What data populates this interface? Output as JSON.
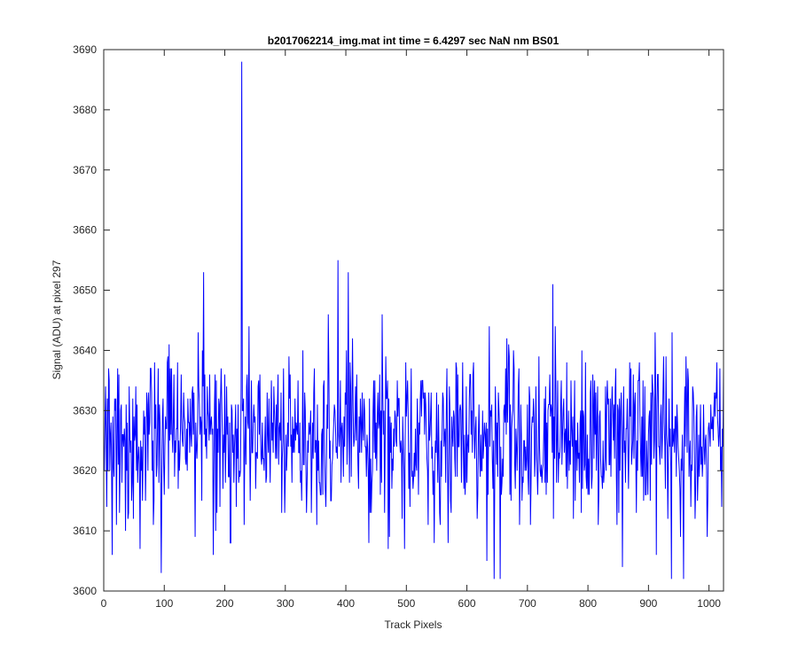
{
  "chart_data": {
    "type": "line",
    "title": "b2017062214_img.mat int time = 6.4297 sec  NaN nm BS01",
    "xlabel": "Track Pixels",
    "ylabel": "Signal (ADU) at pixel 297",
    "xlim": [
      0,
      1024
    ],
    "ylim": [
      3600,
      3690
    ],
    "x_ticks": [
      0,
      100,
      200,
      300,
      400,
      500,
      600,
      700,
      800,
      900,
      1000
    ],
    "y_ticks": [
      3600,
      3610,
      3620,
      3630,
      3640,
      3650,
      3660,
      3670,
      3680,
      3690
    ],
    "grid": false,
    "series": [
      {
        "color": "#0000ff",
        "mean": 3626,
        "noise_std": 7,
        "seed": 20170622,
        "n_points": 1024,
        "x_start": 1,
        "peaks": [
          {
            "x": 228,
            "y": 3688
          },
          {
            "x": 230,
            "y": 3630
          },
          {
            "x": 165,
            "y": 3653
          },
          {
            "x": 387,
            "y": 3655
          },
          {
            "x": 404,
            "y": 3653
          },
          {
            "x": 371,
            "y": 3646
          },
          {
            "x": 742,
            "y": 3651
          },
          {
            "x": 460,
            "y": 3646
          },
          {
            "x": 95,
            "y": 3603
          },
          {
            "x": 645,
            "y": 3602
          },
          {
            "x": 655,
            "y": 3602
          },
          {
            "x": 938,
            "y": 3602
          },
          {
            "x": 958,
            "y": 3602
          },
          {
            "x": 14,
            "y": 3606
          },
          {
            "x": 60,
            "y": 3607
          },
          {
            "x": 181,
            "y": 3606
          },
          {
            "x": 210,
            "y": 3608
          },
          {
            "x": 633,
            "y": 3605
          },
          {
            "x": 705,
            "y": 3611
          },
          {
            "x": 857,
            "y": 3604
          },
          {
            "x": 913,
            "y": 3606
          }
        ]
      }
    ]
  }
}
